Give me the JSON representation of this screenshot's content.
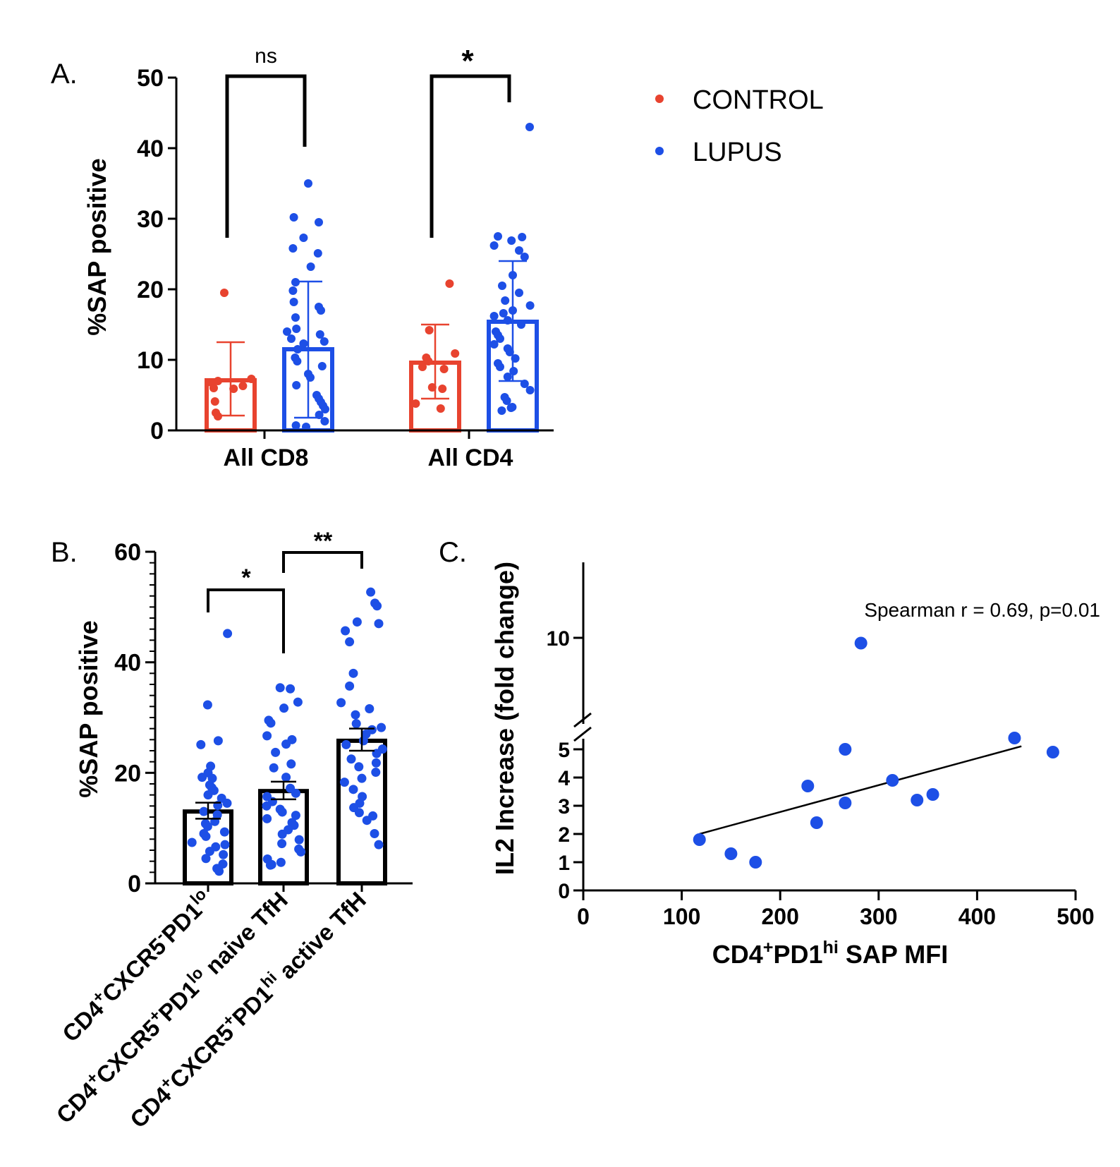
{
  "colors": {
    "control": "#e8432f",
    "lupus": "#1d4fe6",
    "axis": "#000000"
  },
  "panels": {
    "a": {
      "label": "A."
    },
    "b": {
      "label": "B."
    },
    "c": {
      "label": "C."
    }
  },
  "legend": {
    "items": [
      "CONTROL",
      "LUPUS"
    ]
  },
  "chart_data": [
    {
      "panel": "A.",
      "type": "bar",
      "ylabel": "%SAP positive",
      "ylim": [
        0,
        50
      ],
      "yticks": [
        "0",
        "10",
        "20",
        "30",
        "40",
        "50"
      ],
      "categories": [
        "All CD8",
        "All CD4"
      ],
      "series": [
        {
          "name": "CONTROL",
          "color": "#e8432f",
          "values": [
            7.1,
            9.6
          ],
          "error_low": [
            2.1,
            4.5
          ],
          "error_high": [
            12.5,
            15.0
          ],
          "points": [
            [
              19.5,
              7.3,
              6.8,
              7.0,
              6.3,
              5.9,
              4.1,
              2.5,
              2.0,
              6.0
            ],
            [
              20.8,
              14.2,
              10.9,
              10.3,
              9.8,
              9.0,
              8.7,
              6.1,
              5.9,
              3.8,
              3.1
            ]
          ]
        },
        {
          "name": "LUPUS",
          "color": "#1d4fe6",
          "values": [
            11.5,
            15.4
          ],
          "error_low": [
            1.8,
            7.0
          ],
          "error_high": [
            21.1,
            24.0
          ],
          "points": [
            [
              35.0,
              30.2,
              29.5,
              27.3,
              25.8,
              25.1,
              23.2,
              21.0,
              19.8,
              18.2,
              17.5,
              17.0,
              16.0,
              14.4,
              14.0,
              13.6,
              13.0,
              12.6,
              12.3,
              11.5,
              10.3,
              9.8,
              9.1,
              8.0,
              7.5,
              6.4,
              5.0,
              4.5,
              4.0,
              3.5,
              3.0,
              2.2,
              1.3,
              0.7,
              0.5
            ],
            [
              43.0,
              27.4,
              27.5,
              26.9,
              26.2,
              25.5,
              24.6,
              22.0,
              20.5,
              19.5,
              18.4,
              17.7,
              17.0,
              16.6,
              16.2,
              15.6,
              15.0,
              14.0,
              13.5,
              13.0,
              12.2,
              11.6,
              11.1,
              10.2,
              9.5,
              9.0,
              8.4,
              7.6,
              6.6,
              5.7,
              4.7,
              4.2,
              3.3,
              3.2,
              2.8
            ]
          ]
        }
      ],
      "significance": [
        {
          "between": [
            "CONTROL",
            "LUPUS"
          ],
          "category": "All CD8",
          "label": "ns"
        },
        {
          "between": [
            "CONTROL",
            "LUPUS"
          ],
          "category": "All CD4",
          "label": "*"
        }
      ]
    },
    {
      "panel": "B.",
      "type": "bar",
      "ylabel": "%SAP positive",
      "ylim": [
        0,
        60
      ],
      "yticks": [
        "0",
        "20",
        "40",
        "60"
      ],
      "categories": [
        {
          "parts": [
            [
              "CD4",
              ""
            ],
            [
              "+",
              "sup"
            ],
            [
              "CXCR5",
              ""
            ],
            [
              "-",
              "sup"
            ],
            [
              "PD1",
              ""
            ],
            [
              "lo",
              "sup"
            ]
          ]
        },
        {
          "parts": [
            [
              "CD4",
              ""
            ],
            [
              "+",
              "sup"
            ],
            [
              "CXCR5",
              ""
            ],
            [
              "+",
              "sup"
            ],
            [
              "PD1",
              ""
            ],
            [
              "lo",
              "sup"
            ],
            [
              " naive TfH",
              ""
            ]
          ]
        },
        {
          "parts": [
            [
              "CD4",
              ""
            ],
            [
              "+",
              "sup"
            ],
            [
              "CXCR5",
              ""
            ],
            [
              "+",
              "sup"
            ],
            [
              "PD1",
              ""
            ],
            [
              "hi",
              "sup"
            ],
            [
              " active TfH",
              ""
            ]
          ]
        }
      ],
      "values": [
        13.0,
        16.7,
        25.8
      ],
      "error_low": [
        11.7,
        15.2,
        24.0
      ],
      "error_high": [
        14.6,
        18.4,
        28.0
      ],
      "points": [
        [
          45.2,
          32.3,
          25.8,
          25.1,
          21.2,
          20.0,
          19.2,
          19.0,
          17.8,
          17.3,
          16.8,
          16.0,
          15.4,
          14.5,
          14.1,
          13.0,
          12.4,
          11.2,
          10.8,
          10.3,
          9.3,
          9.0,
          8.5,
          7.4,
          7.0,
          6.6,
          5.8,
          5.2,
          4.5,
          3.5,
          2.7,
          2.2
        ],
        [
          35.4,
          35.2,
          32.8,
          31.7,
          29.5,
          29.0,
          26.7,
          26.0,
          25.2,
          23.7,
          21.6,
          20.9,
          19.2,
          17.2,
          16.3,
          15.7,
          14.8,
          14.0,
          13.4,
          12.9,
          12.3,
          11.7,
          11.0,
          10.5,
          9.7,
          8.9,
          7.9,
          7.2,
          6.2,
          5.7,
          4.4,
          3.8,
          3.4,
          3.3
        ],
        [
          52.7,
          50.7,
          50.2,
          47.3,
          47.0,
          45.7,
          43.7,
          38.0,
          35.7,
          32.7,
          31.6,
          30.5,
          28.9,
          28.2,
          27.8,
          27.0,
          25.8,
          25.1,
          24.3,
          23.5,
          22.5,
          21.8,
          21.1,
          20.1,
          19.0,
          18.3,
          17.0,
          15.7,
          14.5,
          13.7,
          12.8,
          12.2,
          11.4,
          9.0,
          7.0
        ]
      ],
      "color": "#1d4fe6",
      "significance": [
        {
          "between": [
            0,
            1
          ],
          "label": "*"
        },
        {
          "between": [
            1,
            2
          ],
          "label": "**"
        }
      ]
    },
    {
      "panel": "C.",
      "type": "scatter",
      "xlabel_parts": [
        [
          "CD4",
          ""
        ],
        [
          "+",
          "sup"
        ],
        [
          "PD1",
          ""
        ],
        [
          "hi",
          "sup"
        ],
        [
          " SAP MFI",
          ""
        ]
      ],
      "ylabel": "IL2 Increase (fold change)",
      "xlim": [
        0,
        500
      ],
      "xticks": [
        "0",
        "100",
        "200",
        "300",
        "400",
        "500"
      ],
      "y_axis_break": true,
      "yticks": [
        "0",
        "1",
        "2",
        "3",
        "4",
        "5",
        "10"
      ],
      "annotation": "Spearman r  = 0.69, p=0.01",
      "x": [
        118,
        150,
        175,
        228,
        237,
        266,
        266,
        282,
        314,
        339,
        355,
        438,
        477
      ],
      "y": [
        1.8,
        1.3,
        1.0,
        3.7,
        2.4,
        3.1,
        5.0,
        8.9,
        3.9,
        3.2,
        3.4,
        5.4,
        4.9
      ],
      "fit_line": {
        "x": [
          118,
          445
        ],
        "y": [
          2.0,
          5.5
        ]
      },
      "color": "#1d4fe6"
    }
  ]
}
